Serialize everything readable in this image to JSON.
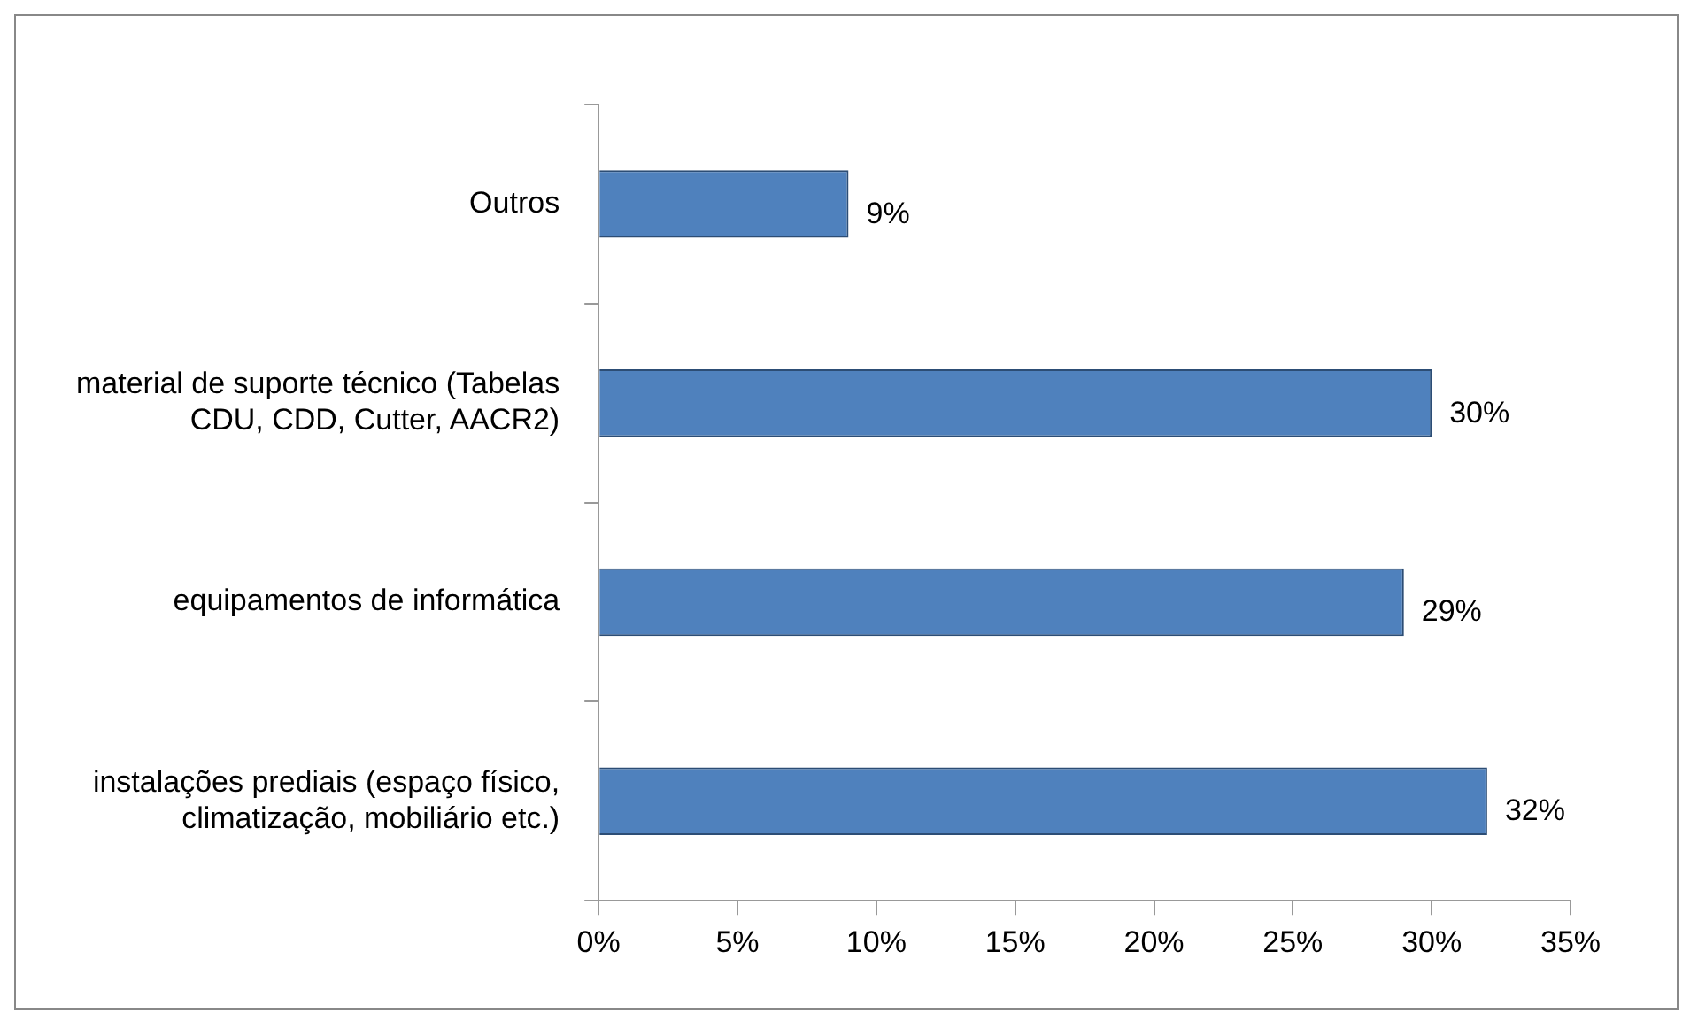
{
  "chart_data": {
    "type": "bar",
    "orientation": "horizontal",
    "categories": [
      "Outros",
      "material de suporte técnico (Tabelas CDU, CDD, Cutter, AACR2)",
      "equipamentos de informática",
      "instalações prediais (espaço físico, climatização, mobiliário etc.)"
    ],
    "values": [
      9,
      30,
      29,
      32
    ],
    "value_labels": [
      "9%",
      "30%",
      "29%",
      "32%"
    ],
    "color": "#4f81bd",
    "xlim": [
      0,
      35
    ],
    "xticks": [
      {
        "value": 0,
        "label": "0%"
      },
      {
        "value": 5,
        "label": "5%"
      },
      {
        "value": 10,
        "label": "10%"
      },
      {
        "value": 15,
        "label": "15%"
      },
      {
        "value": 20,
        "label": "20%"
      },
      {
        "value": 25,
        "label": "25%"
      },
      {
        "value": 30,
        "label": "30%"
      },
      {
        "value": 35,
        "label": "35%"
      }
    ],
    "grid": false,
    "legend": false
  }
}
